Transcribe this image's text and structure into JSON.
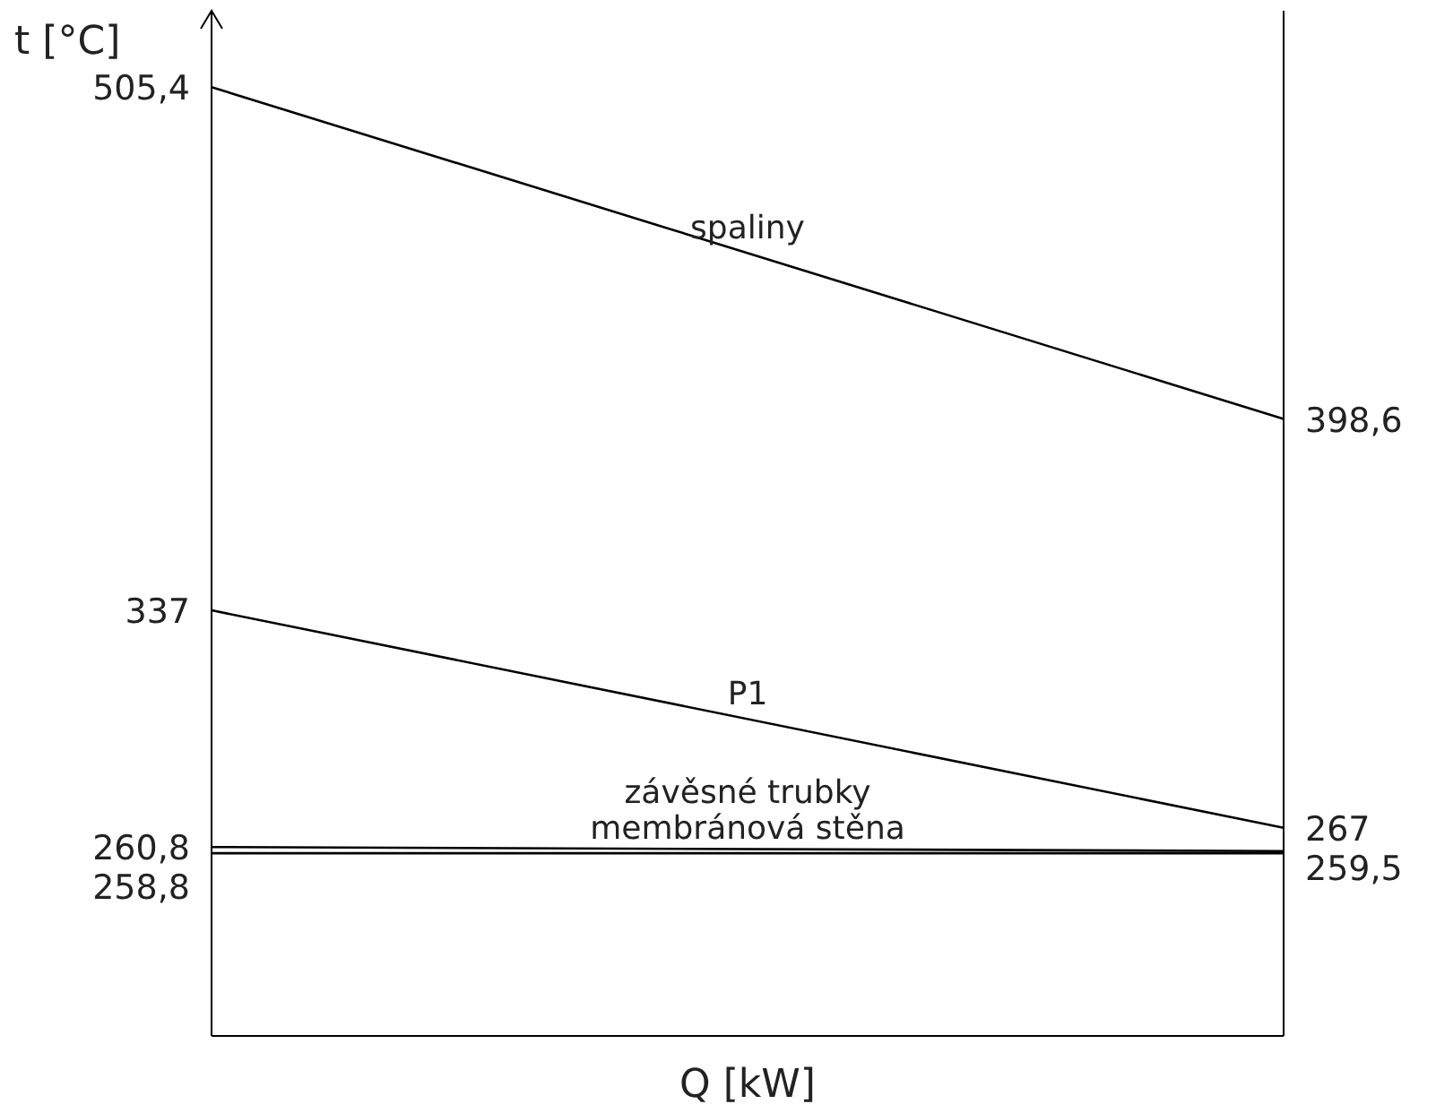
{
  "chart_data": {
    "type": "line",
    "xlabel": "Q [kW]",
    "ylabel": "t [°C]",
    "categories": [
      null,
      null
    ],
    "ylim": [
      200,
      530
    ],
    "tick_labels": false,
    "marker": "none",
    "line_style": "solid",
    "series": [
      {
        "name": "spaliny",
        "color": "#000000",
        "values": [
          505.4,
          398.6
        ],
        "value_labels": [
          "505,4",
          "398,6"
        ]
      },
      {
        "name": "P1",
        "color": "#000000",
        "values": [
          337,
          267
        ],
        "value_labels": [
          "337",
          "267"
        ]
      },
      {
        "name": "závěsné trubky",
        "color": "#000000",
        "values": [
          260.8,
          259.5
        ],
        "value_labels": [
          "260,8",
          "259,5"
        ]
      },
      {
        "name": "membránová stěna",
        "color": "#000000",
        "values": [
          258.8,
          258.8
        ],
        "value_labels": [
          "258,8",
          null
        ]
      }
    ]
  }
}
